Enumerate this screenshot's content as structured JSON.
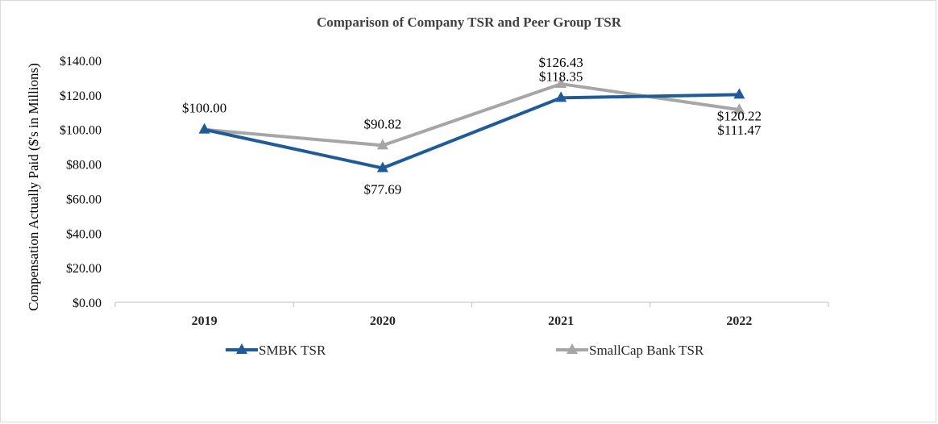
{
  "chart_data": {
    "type": "line",
    "title": "Comparison of Company TSR and Peer Group TSR",
    "xlabel": "",
    "ylabel": "Compensation Actually Paid ($'s in Millions)",
    "categories": [
      "2019",
      "2020",
      "2021",
      "2022"
    ],
    "ylim": [
      0,
      140
    ],
    "ytick_values": [
      0,
      20,
      40,
      60,
      80,
      100,
      120,
      140
    ],
    "ytick_labels": [
      "$0.00",
      "$20.00",
      "$40.00",
      "$60.00",
      "$80.00",
      "$100.00",
      "$120.00",
      "$140.00"
    ],
    "grid": false,
    "legend_position": "bottom",
    "series": [
      {
        "name": "SMBK TSR",
        "color": "#1f5b99",
        "marker": "triangle",
        "values": [
          100.0,
          77.69,
          118.35,
          120.22
        ],
        "data_labels": [
          "",
          "$77.69",
          "$118.35",
          "$120.22"
        ]
      },
      {
        "name": "SmallCap Bank TSR",
        "color": "#a6a6a6",
        "marker": "triangle",
        "values": [
          100.0,
          90.82,
          126.43,
          111.47
        ],
        "data_labels": [
          "$100.00",
          "$90.82",
          "$126.43",
          "$111.47"
        ]
      }
    ]
  }
}
